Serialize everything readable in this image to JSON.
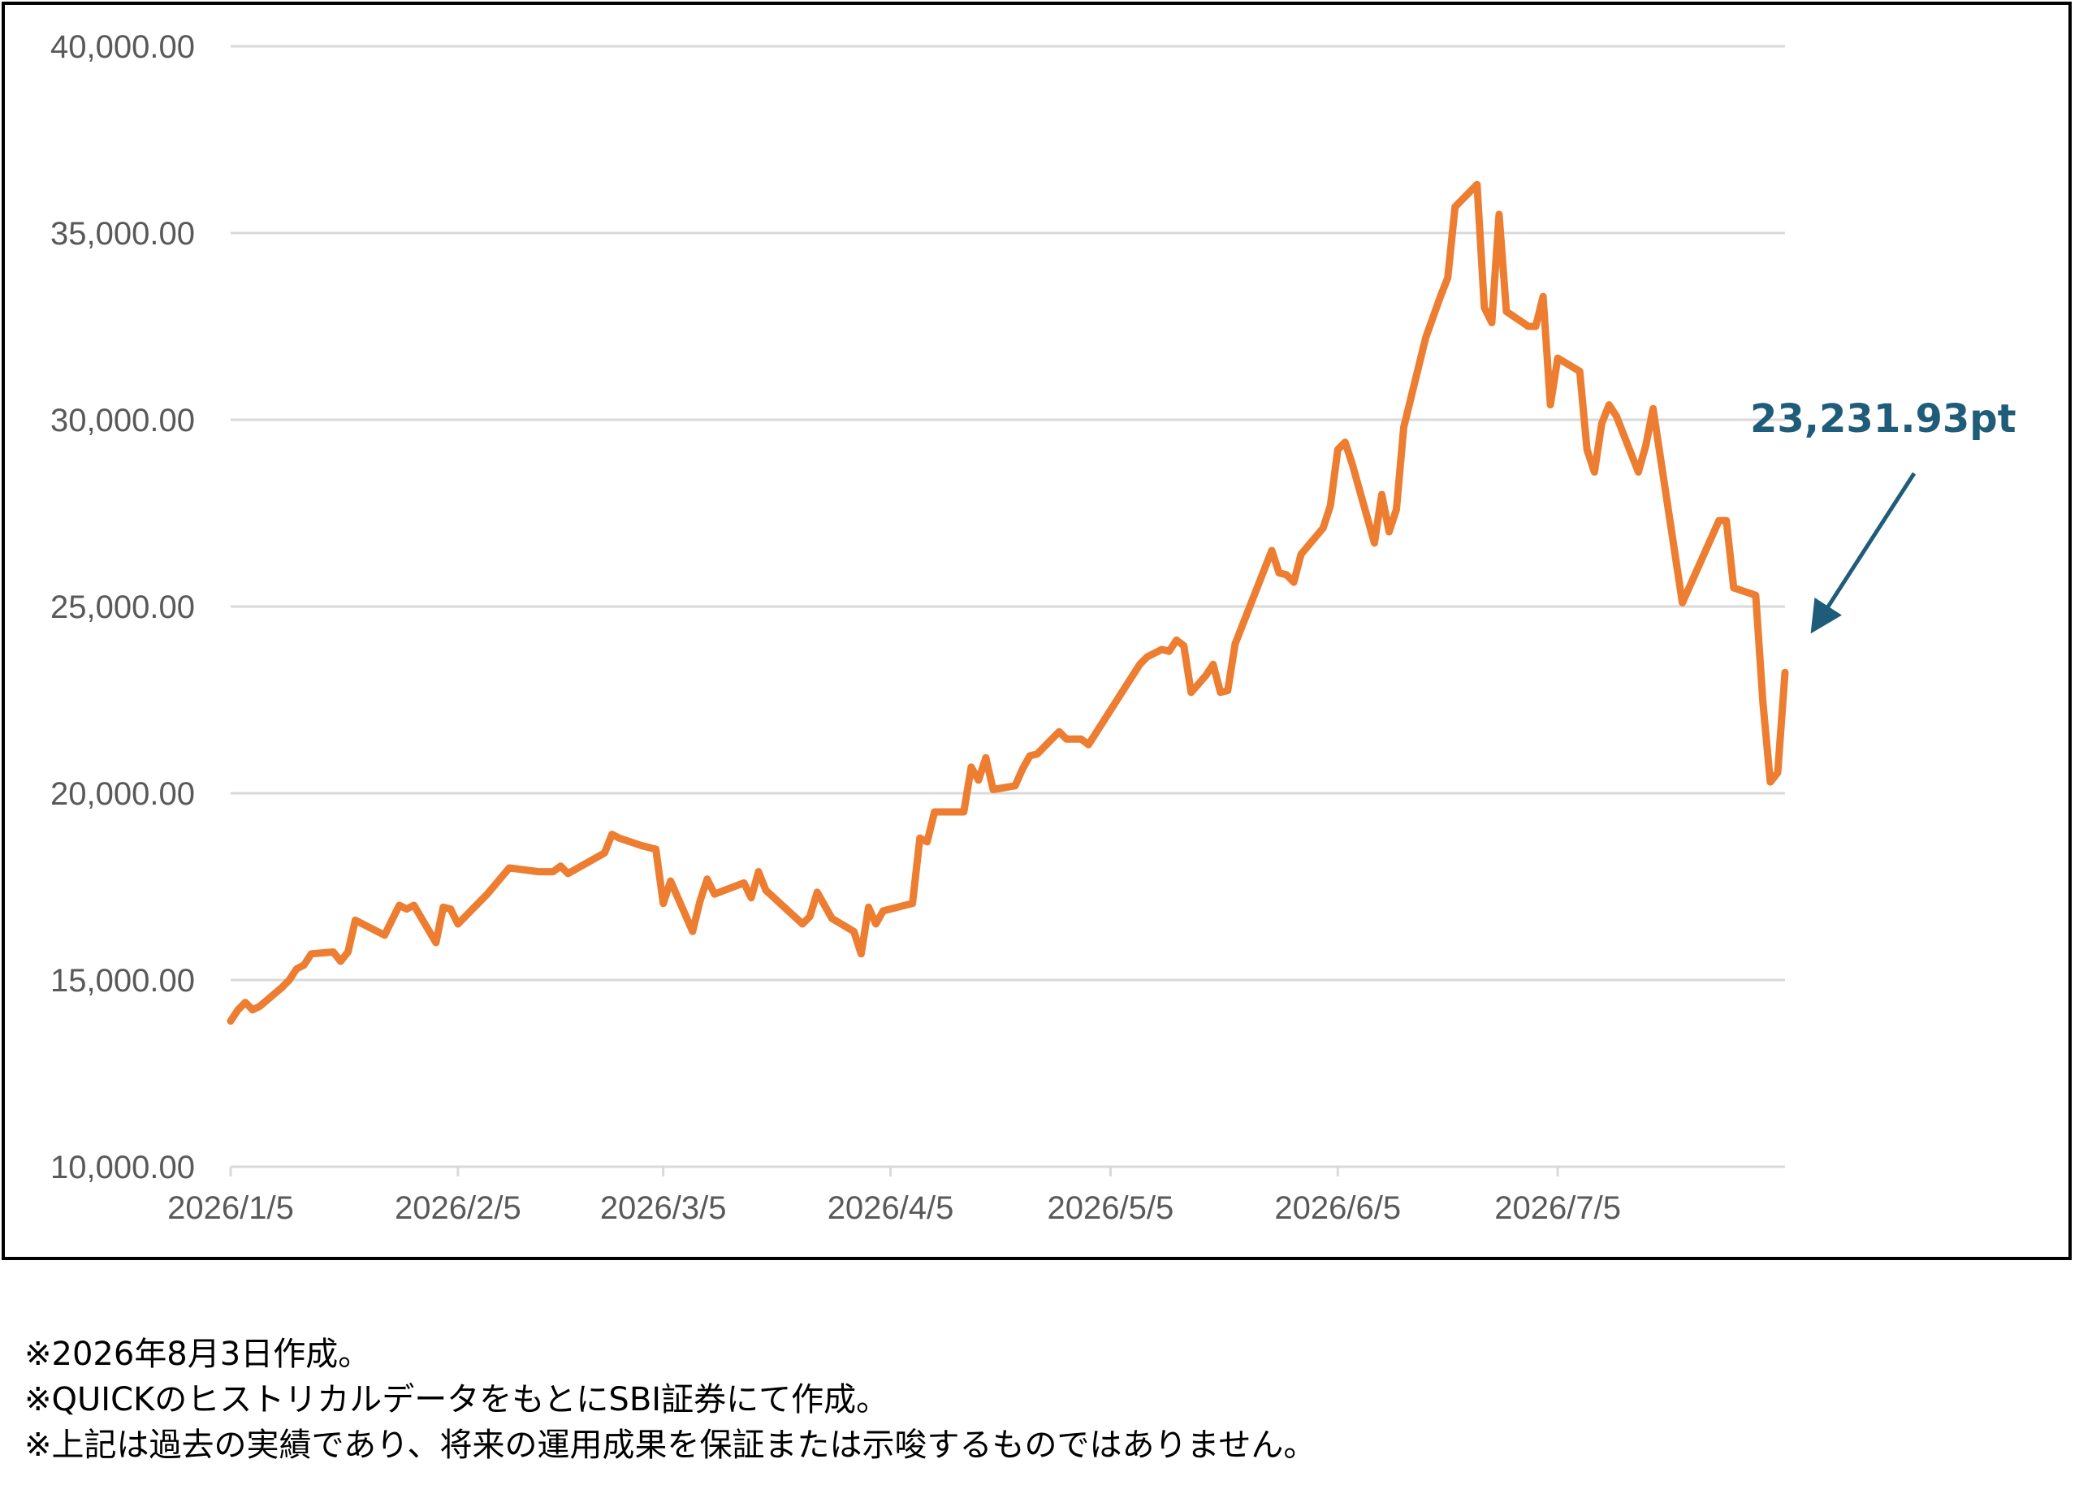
{
  "chart_data": {
    "type": "line",
    "title": "",
    "xlabel": "",
    "ylabel": "",
    "ylim": [
      10000,
      40000
    ],
    "yticks": [
      "10,000.00",
      "15,000.00",
      "20,000.00",
      "25,000.00",
      "30,000.00",
      "35,000.00",
      "40,000.00"
    ],
    "ytick_values": [
      10000,
      15000,
      20000,
      25000,
      30000,
      35000,
      40000
    ],
    "xticks": [
      "2026/1/5",
      "2026/2/5",
      "2026/3/5",
      "2026/4/5",
      "2026/5/5",
      "2026/6/5",
      "2026/7/5"
    ],
    "xtick_dates": [
      "2026-01-05",
      "2026-02-05",
      "2026-03-05",
      "2026-04-05",
      "2026-05-05",
      "2026-06-05",
      "2026-07-05"
    ],
    "grid": true,
    "line_color": "#ed7d31",
    "series": [
      {
        "points": [
          [
            "2026-01-05",
            13900
          ],
          [
            "2026-01-06",
            14200
          ],
          [
            "2026-01-07",
            14400
          ],
          [
            "2026-01-08",
            14200
          ],
          [
            "2026-01-09",
            14300
          ],
          [
            "2026-01-12",
            14800
          ],
          [
            "2026-01-13",
            15000
          ],
          [
            "2026-01-14",
            15300
          ],
          [
            "2026-01-15",
            15400
          ],
          [
            "2026-01-16",
            15700
          ],
          [
            "2026-01-19",
            15750
          ],
          [
            "2026-01-20",
            15500
          ],
          [
            "2026-01-21",
            15750
          ],
          [
            "2026-01-22",
            16600
          ],
          [
            "2026-01-26",
            16200
          ],
          [
            "2026-01-27",
            16600
          ],
          [
            "2026-01-28",
            17000
          ],
          [
            "2026-01-29",
            16900
          ],
          [
            "2026-01-30",
            17000
          ],
          [
            "2026-02-02",
            16000
          ],
          [
            "2026-02-03",
            16950
          ],
          [
            "2026-02-04",
            16900
          ],
          [
            "2026-02-05",
            16500
          ],
          [
            "2026-02-09",
            17300
          ],
          [
            "2026-02-12",
            18000
          ],
          [
            "2026-02-16",
            17900
          ],
          [
            "2026-02-18",
            17900
          ],
          [
            "2026-02-19",
            18050
          ],
          [
            "2026-02-20",
            17850
          ],
          [
            "2026-02-25",
            18400
          ],
          [
            "2026-02-26",
            18900
          ],
          [
            "2026-02-27",
            18800
          ],
          [
            "2026-03-02",
            18600
          ],
          [
            "2026-03-04",
            18500
          ],
          [
            "2026-03-05",
            17050
          ],
          [
            "2026-03-06",
            17650
          ],
          [
            "2026-03-09",
            16300
          ],
          [
            "2026-03-10",
            17100
          ],
          [
            "2026-03-11",
            17700
          ],
          [
            "2026-03-12",
            17300
          ],
          [
            "2026-03-16",
            17600
          ],
          [
            "2026-03-17",
            17200
          ],
          [
            "2026-03-18",
            17900
          ],
          [
            "2026-03-19",
            17400
          ],
          [
            "2026-03-24",
            16500
          ],
          [
            "2026-03-25",
            16700
          ],
          [
            "2026-03-26",
            17350
          ],
          [
            "2026-03-27",
            17000
          ],
          [
            "2026-03-28",
            16650
          ],
          [
            "2026-03-31",
            16300
          ],
          [
            "2026-04-01",
            15700
          ],
          [
            "2026-04-02",
            16950
          ],
          [
            "2026-04-03",
            16500
          ],
          [
            "2026-04-04",
            16850
          ],
          [
            "2026-04-08",
            17050
          ],
          [
            "2026-04-09",
            18800
          ],
          [
            "2026-04-10",
            18700
          ],
          [
            "2026-04-11",
            19500
          ],
          [
            "2026-04-15",
            19500
          ],
          [
            "2026-04-16",
            20700
          ],
          [
            "2026-04-17",
            20350
          ],
          [
            "2026-04-18",
            20950
          ],
          [
            "2026-04-19",
            20100
          ],
          [
            "2026-04-22",
            20200
          ],
          [
            "2026-04-23",
            20650
          ],
          [
            "2026-04-24",
            21000
          ],
          [
            "2026-04-25",
            21050
          ],
          [
            "2026-04-28",
            21650
          ],
          [
            "2026-04-29",
            21450
          ],
          [
            "2026-05-01",
            21450
          ],
          [
            "2026-05-02",
            21300
          ],
          [
            "2026-05-09",
            23450
          ],
          [
            "2026-05-10",
            23650
          ],
          [
            "2026-05-12",
            23850
          ],
          [
            "2026-05-13",
            23800
          ],
          [
            "2026-05-14",
            24100
          ],
          [
            "2026-05-15",
            23950
          ],
          [
            "2026-05-16",
            22700
          ],
          [
            "2026-05-18",
            23150
          ],
          [
            "2026-05-19",
            23450
          ],
          [
            "2026-05-20",
            22700
          ],
          [
            "2026-05-21",
            22750
          ],
          [
            "2026-05-22",
            24000
          ],
          [
            "2026-05-27",
            26500
          ],
          [
            "2026-05-28",
            25900
          ],
          [
            "2026-05-29",
            25850
          ],
          [
            "2026-05-30",
            25650
          ],
          [
            "2026-05-31",
            26400
          ],
          [
            "2026-06-03",
            27100
          ],
          [
            "2026-06-04",
            27700
          ],
          [
            "2026-06-05",
            29200
          ],
          [
            "2026-06-06",
            29400
          ],
          [
            "2026-06-07",
            28800
          ],
          [
            "2026-06-10",
            26700
          ],
          [
            "2026-06-11",
            28000
          ],
          [
            "2026-06-12",
            27000
          ],
          [
            "2026-06-13",
            27600
          ],
          [
            "2026-06-14",
            29800
          ],
          [
            "2026-06-17",
            32200
          ],
          [
            "2026-06-19",
            33300
          ],
          [
            "2026-06-20",
            33800
          ],
          [
            "2026-06-21",
            35700
          ],
          [
            "2026-06-24",
            36300
          ],
          [
            "2026-06-25",
            33000
          ],
          [
            "2026-06-26",
            32600
          ],
          [
            "2026-06-27",
            35500
          ],
          [
            "2026-06-28",
            32900
          ],
          [
            "2026-07-01",
            32500
          ],
          [
            "2026-07-02",
            32500
          ],
          [
            "2026-07-03",
            33300
          ],
          [
            "2026-07-04",
            30400
          ],
          [
            "2026-07-05",
            31650
          ],
          [
            "2026-07-08",
            31300
          ],
          [
            "2026-07-09",
            29200
          ],
          [
            "2026-07-10",
            28600
          ],
          [
            "2026-07-11",
            29900
          ],
          [
            "2026-07-12",
            30400
          ],
          [
            "2026-07-13",
            30100
          ],
          [
            "2026-07-16",
            28600
          ],
          [
            "2026-07-17",
            29300
          ],
          [
            "2026-07-18",
            30300
          ],
          [
            "2026-07-22",
            25100
          ],
          [
            "2026-07-27",
            27300
          ],
          [
            "2026-07-28",
            27300
          ],
          [
            "2026-07-29",
            25500
          ],
          [
            "2026-08-01",
            25300
          ],
          [
            "2026-08-02",
            22400
          ],
          [
            "2026-08-03",
            20300
          ],
          [
            "2026-08-04",
            20550
          ],
          [
            "2026-08-05",
            23232
          ]
        ]
      }
    ],
    "annotation": {
      "text": "23,231.93pt",
      "points_to_date": "2026-08-05",
      "points_to_value": 23231.93,
      "color": "#1f5c7a"
    }
  },
  "notes": [
    "※2026年8月3日作成。",
    "※QUICKのヒストリカルデータをもとにSBI証券にて作成。",
    "※上記は過去の実績であり、将来の運用成果を保証または示唆するものではありません。"
  ]
}
